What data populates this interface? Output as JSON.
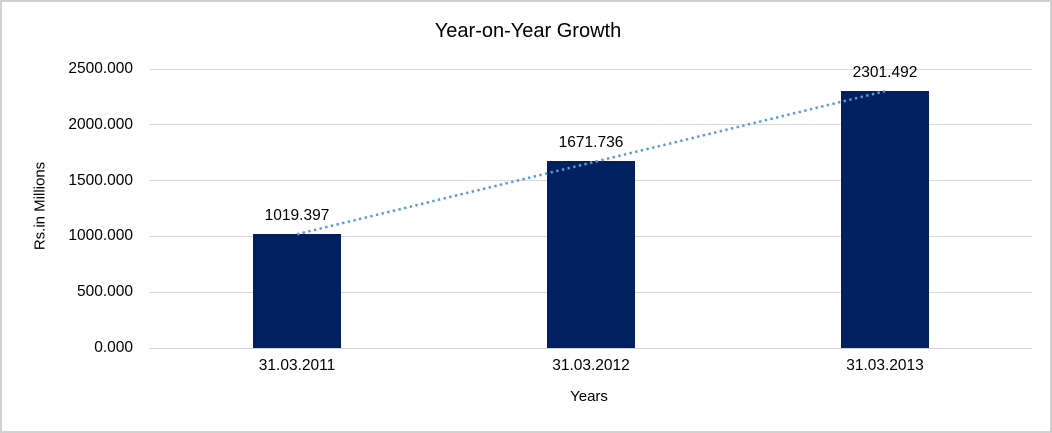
{
  "chart_data": {
    "type": "bar",
    "title": "Year-on-Year Growth",
    "categories": [
      "31.03.2011",
      "31.03.2012",
      "31.03.2013"
    ],
    "values": [
      1019.397,
      1671.736,
      2301.492
    ],
    "data_labels": [
      "1019.397",
      "1671.736",
      "2301.492"
    ],
    "xlabel": "Years",
    "ylabel": "Rs.in Millions",
    "ylim": [
      0,
      2500
    ],
    "yticks": [
      0,
      500,
      1000,
      1500,
      2000,
      2500
    ],
    "ytick_labels": [
      "0.000",
      "500.000",
      "1000.000",
      "1500.000",
      "2000.000",
      "2500.000"
    ],
    "grid": true,
    "legend": "none",
    "trendline": {
      "type": "linear",
      "style": "dotted",
      "from_category": "31.03.2011",
      "to_category": "31.03.2013"
    },
    "colors": {
      "bar": "#002060",
      "trendline": "#5B9BD5",
      "gridline": "#D9D9D9",
      "axis_line": "#D3D3D3",
      "text": "#000000",
      "frame_border": "#D1D1D1",
      "background": "#FFFFFF"
    }
  }
}
